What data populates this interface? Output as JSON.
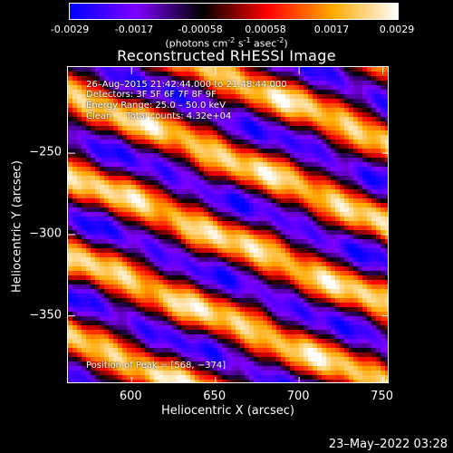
{
  "colorbar": {
    "tick_labels": [
      "-0.0029",
      "-0.0017",
      "-0.00058",
      "0.00058",
      "0.0017",
      "0.0029"
    ],
    "unit_parts": [
      "(photons cm",
      "-2",
      " s",
      "-1",
      " asec",
      "-2",
      ")"
    ]
  },
  "chart_data": {
    "type": "heatmap",
    "title": "Reconstructed RHESSI Image",
    "xlabel": "Heliocentric X (arcsec)",
    "ylabel": "Heliocentric Y (arcsec)",
    "xlim": [
      562,
      754
    ],
    "ylim": [
      -392,
      -197
    ],
    "xticks": [
      600,
      650,
      700,
      750
    ],
    "yticks": [
      -250,
      -300,
      -350
    ],
    "xtick_labels": [
      "600",
      "650",
      "700",
      "750"
    ],
    "ytick_labels": [
      "−250",
      "−300",
      "−350"
    ],
    "value_range": [
      -0.0029,
      0.0029
    ],
    "colormap": [
      "#0000ff",
      "#7f00ff",
      "#000000",
      "#ff0000",
      "#ffaa00",
      "#ffffff"
    ],
    "peak": [
      568,
      -374
    ],
    "annotations": {
      "time_range": "26–Aug–2015 21:42:44.000 to 21:48:44.000",
      "detectors": "Detectors: 3F 5F 6F 7F 8F 9F",
      "energy": "Energy Range: 25.0 – 50.0 keV",
      "clean": "Clean     Total counts: 4.32e+04",
      "peak_text": "Position of Peak = [568, −374]"
    }
  },
  "timestamp": "23–May–2022 03:28"
}
